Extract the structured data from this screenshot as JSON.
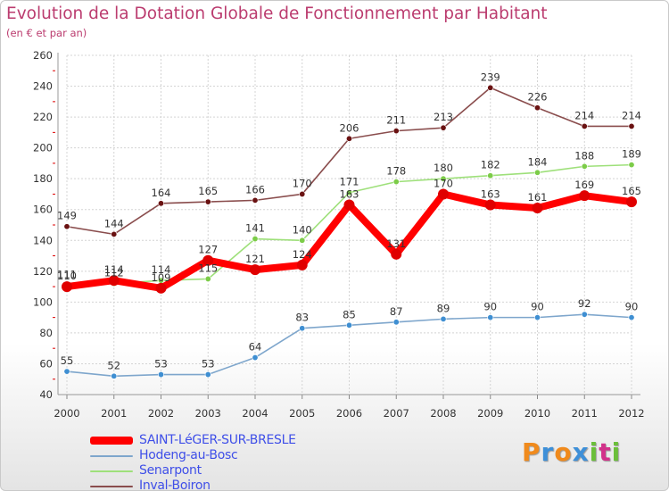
{
  "header": {
    "title": "Evolution de la Dotation Globale de Fonctionnement par Habitant",
    "subtitle": "(en € et par an)"
  },
  "logo": {
    "letters": [
      "P",
      "r",
      "o",
      "x",
      "i",
      "t",
      "i"
    ]
  },
  "chart_data": {
    "type": "line",
    "title": "Evolution de la Dotation Globale de Fonctionnement par Habitant",
    "subtitle": "(en € et par an)",
    "xlabel": "",
    "ylabel": "",
    "categories": [
      "2000",
      "2001",
      "2002",
      "2003",
      "2004",
      "2005",
      "2006",
      "2007",
      "2008",
      "2009",
      "2010",
      "2011",
      "2012"
    ],
    "ylim": [
      40,
      260
    ],
    "yticks": [
      40,
      60,
      80,
      100,
      120,
      140,
      160,
      180,
      200,
      220,
      240,
      260
    ],
    "grid": true,
    "legend_position": "bottom-left",
    "series": [
      {
        "name": "SAINT-LéGER-SUR-BRESLE",
        "values": [
          110,
          114,
          109,
          127,
          121,
          124,
          163,
          131,
          170,
          163,
          161,
          169,
          165
        ],
        "color": "#ff0000",
        "marker": "#e00000"
      },
      {
        "name": "Hodeng-au-Bosc",
        "values": [
          55,
          52,
          53,
          53,
          64,
          83,
          85,
          87,
          89,
          90,
          90,
          92,
          90
        ],
        "color": "#7ea6cc",
        "marker": "#3f8fd2"
      },
      {
        "name": "Senarpont",
        "values": [
          111,
          112,
          114,
          115,
          141,
          140,
          171,
          178,
          180,
          182,
          184,
          188,
          189
        ],
        "color": "#9ee07a",
        "marker": "#7ccc48"
      },
      {
        "name": "Inval-Boiron",
        "values": [
          149,
          144,
          164,
          165,
          166,
          170,
          206,
          211,
          213,
          239,
          226,
          214,
          214
        ],
        "color": "#8a4d4d",
        "marker": "#6a1212"
      }
    ],
    "label_order": [
      "Senarpont",
      "SAINT-LéGER-SUR-BRESLE",
      "Hodeng-au-Bosc",
      "Inval-Boiron"
    ],
    "draw_order": [
      "Hodeng-au-Bosc",
      "Senarpont",
      "Inval-Boiron",
      "SAINT-LéGER-SUR-BRESLE"
    ]
  }
}
